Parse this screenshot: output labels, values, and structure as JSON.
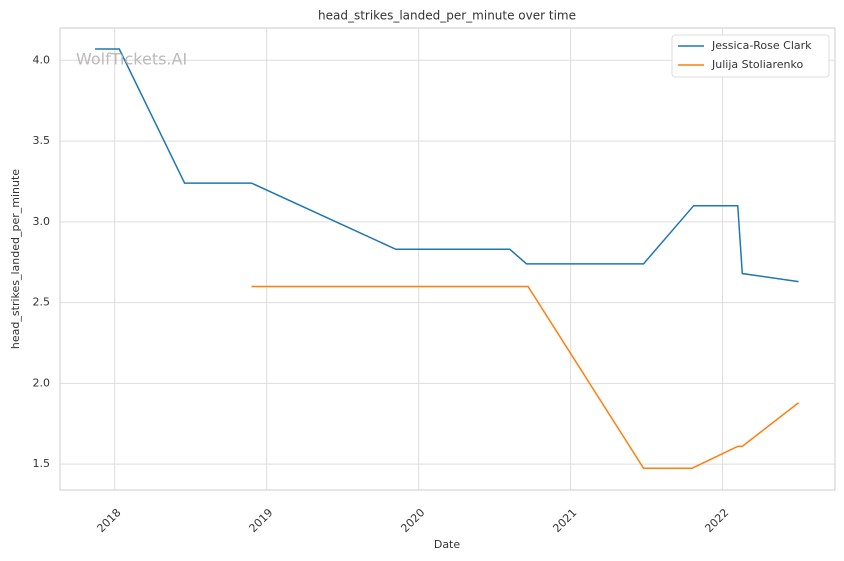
{
  "chart_data": {
    "type": "line",
    "title": "head_strikes_landed_per_minute over time",
    "xlabel": "Date",
    "ylabel": "head_strikes_landed_per_minute",
    "annotation": "WolfTickets.AI",
    "series": [
      {
        "name": "Jessica-Rose Clark",
        "color": "#1f77b4",
        "x": [
          2017.87,
          2018.03,
          2018.46,
          2018.9,
          2019.85,
          2020.6,
          2020.71,
          2021.48,
          2021.81,
          2022.1,
          2022.13,
          2022.5
        ],
        "values": [
          4.07,
          4.07,
          3.24,
          3.24,
          2.83,
          2.83,
          2.74,
          2.74,
          3.1,
          3.1,
          2.68,
          2.63
        ]
      },
      {
        "name": "Julija Stoliarenko",
        "color": "#ff7f0e",
        "x": [
          2018.9,
          2020.72,
          2021.48,
          2021.8,
          2022.1,
          2022.13,
          2022.5
        ],
        "values": [
          2.6,
          2.6,
          1.475,
          1.475,
          1.61,
          1.61,
          1.88
        ]
      }
    ],
    "xlim": [
      2017.64,
      2022.74
    ],
    "xticks": [
      2018,
      2019,
      2020,
      2021,
      2022
    ],
    "ylim": [
      1.34,
      4.2
    ],
    "yticks": [
      1.5,
      {
        "value": 2,
        "label": "2.0"
      },
      2.5,
      {
        "value": 3,
        "label": "3.0"
      },
      3.5,
      {
        "value": 4,
        "label": "4.0"
      }
    ],
    "grid": true,
    "legend": "upper right"
  }
}
